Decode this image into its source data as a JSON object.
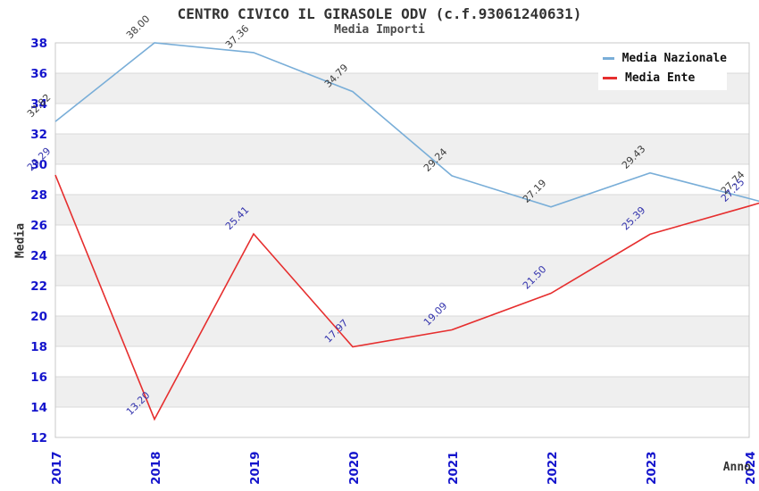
{
  "header": {
    "title": "CENTRO CIVICO IL GIRASOLE ODV (c.f.93061240631)",
    "subtitle": "Media Importi"
  },
  "chart_data": {
    "type": "line",
    "title": "CENTRO CIVICO IL GIRASOLE ODV (c.f.93061240631)",
    "subtitle": "Media Importi",
    "xlabel": "Anno",
    "ylabel": "Media",
    "x": [
      2017,
      2018,
      2019,
      2020,
      2021,
      2022,
      2023,
      2024
    ],
    "yticks": [
      12,
      14,
      16,
      18,
      20,
      22,
      24,
      26,
      28,
      30,
      32,
      34,
      36,
      38
    ],
    "ylim": [
      12,
      38
    ],
    "grid": true,
    "banded_background": true,
    "xtick_rotation": 90,
    "data_labels": true,
    "legend_position": "top-right",
    "series": [
      {
        "name": "Media Nazionale",
        "color": "#79aed8",
        "label_color": "#3d3d3d",
        "values": [
          32.82,
          38.0,
          37.36,
          34.79,
          29.24,
          27.19,
          29.43,
          27.74
        ]
      },
      {
        "name": "Media Ente",
        "color": "#e62e2e",
        "label_color": "#3333ad",
        "values": [
          29.29,
          13.2,
          25.41,
          17.97,
          19.09,
          21.5,
          25.39,
          27.25
        ]
      }
    ]
  },
  "style": {
    "background": "#ffffff",
    "band_fill": "#efefef",
    "grid_line": "#d8d8d8",
    "frame_line": "#c9c9c9",
    "axis_tick_text": "#1414cc",
    "title_text": "#333333",
    "subtitle_text": "#4d4d4d",
    "axis_title_text": "#333333",
    "legend_text": "#111111"
  }
}
